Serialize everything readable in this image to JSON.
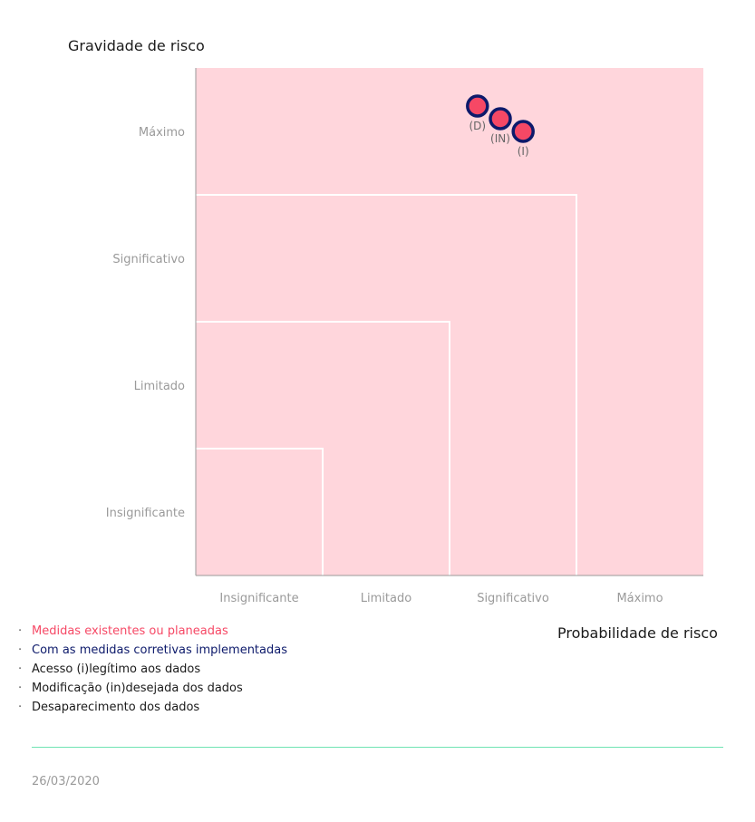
{
  "chart_data": {
    "type": "scatter",
    "ylabel": "Gravidade de risco",
    "xlabel": "Probabilidade de risco",
    "categories": [
      "Insignificante",
      "Limitado",
      "Significativo",
      "Máximo"
    ],
    "xlim": [
      0,
      4
    ],
    "ylim": [
      0,
      4
    ],
    "points": [
      {
        "label": "(D)",
        "x": 2.22,
        "y": 3.7
      },
      {
        "label": "(IN)",
        "x": 2.4,
        "y": 3.6
      },
      {
        "label": "(I)",
        "x": 2.58,
        "y": 3.5
      }
    ],
    "colors": {
      "background": "#ffd6dc",
      "point_fill": "#f64865",
      "point_stroke": "#0d1a6b",
      "grid": "#ffffff"
    }
  },
  "legend": [
    {
      "text": "Medidas existentes ou planeadas",
      "color": "#f64865"
    },
    {
      "text": "Com as medidas corretivas implementadas",
      "color": "#0d1a6b"
    },
    {
      "text": "Acesso (i)legítimo aos dados",
      "color": "#1b1b1b"
    },
    {
      "text": "Modificação (in)desejada dos dados",
      "color": "#1b1b1b"
    },
    {
      "text": "Desaparecimento dos dados",
      "color": "#1b1b1b"
    }
  ],
  "footer": {
    "date": "26/03/2020"
  }
}
